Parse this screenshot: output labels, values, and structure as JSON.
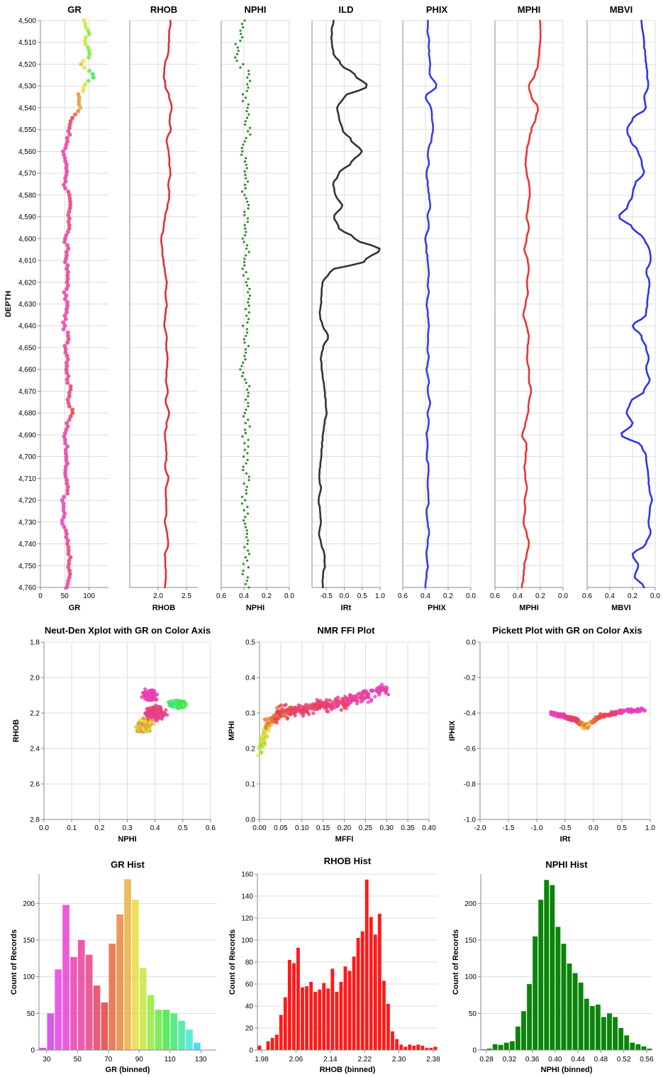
{
  "chart_data": [
    {
      "type": "line",
      "title": "GR",
      "xlabel": "GR",
      "ylabel": "DEPTH",
      "xlim": [
        0,
        140
      ],
      "xticks": [
        "0",
        "50",
        "100"
      ],
      "ylim": [
        4500,
        4760
      ],
      "yticks": [
        "4,500",
        "4,510",
        "4,520",
        "4,530",
        "4,540",
        "4,550",
        "4,560",
        "4,570",
        "4,580",
        "4,590",
        "4,600",
        "4,610",
        "4,620",
        "4,630",
        "4,640",
        "4,650",
        "4,660",
        "4,670",
        "4,680",
        "4,690",
        "4,700",
        "4,710",
        "4,720",
        "4,730",
        "4,740",
        "4,750",
        "4,760"
      ],
      "color": "GR color scale (purple-pink-orange-yellow-green-cyan-blue)",
      "depth": [
        4500,
        4505,
        4510,
        4515,
        4520,
        4525,
        4530,
        4535,
        4540,
        4545,
        4550,
        4555,
        4560,
        4565,
        4570,
        4575,
        4580,
        4585,
        4590,
        4595,
        4600,
        4605,
        4610,
        4615,
        4620,
        4625,
        4630,
        4635,
        4640,
        4645,
        4650,
        4655,
        4660,
        4665,
        4670,
        4675,
        4680,
        4685,
        4690,
        4695,
        4700,
        4705,
        4710,
        4715,
        4720,
        4725,
        4730,
        4735,
        4740,
        4745,
        4750,
        4755,
        4760
      ],
      "values": [
        88,
        99,
        92,
        103,
        85,
        110,
        92,
        78,
        82,
        65,
        60,
        55,
        48,
        52,
        55,
        50,
        58,
        60,
        57,
        61,
        50,
        55,
        53,
        55,
        57,
        50,
        55,
        52,
        48,
        57,
        52,
        57,
        55,
        57,
        62,
        58,
        65,
        55,
        50,
        54,
        55,
        52,
        52,
        58,
        45,
        48,
        45,
        52,
        55,
        60,
        58,
        60,
        53
      ]
    },
    {
      "type": "line",
      "title": "RHOB",
      "xlabel": "RHOB",
      "xlim": [
        1.5,
        2.7
      ],
      "xticks": [
        "2.0",
        "2.5"
      ],
      "color": "#e03030",
      "values": [
        2.22,
        2.2,
        2.19,
        2.18,
        2.12,
        2.1,
        2.13,
        2.2,
        2.24,
        2.2,
        2.22,
        2.15,
        2.18,
        2.2,
        2.22,
        2.18,
        2.2,
        2.17,
        2.12,
        2.1,
        2.05,
        2.07,
        2.09,
        2.12,
        2.15,
        2.13,
        2.15,
        2.13,
        2.11,
        2.15,
        2.14,
        2.17,
        2.15,
        2.14,
        2.17,
        2.13,
        2.2,
        2.15,
        2.12,
        2.14,
        2.15,
        2.12,
        2.18,
        2.13,
        2.14,
        2.15,
        2.12,
        2.16,
        2.18,
        2.12,
        2.13,
        2.14,
        2.12
      ]
    },
    {
      "type": "scatter",
      "title": "NPHI",
      "xlabel": "NPHI",
      "xlim": [
        0.6,
        0.0
      ],
      "xticks": [
        "0.6",
        "0.4",
        "0.2",
        "0.0"
      ],
      "color": "#2e8b2e",
      "values": [
        0.4,
        0.42,
        0.45,
        0.47,
        0.43,
        0.35,
        0.38,
        0.4,
        0.37,
        0.38,
        0.36,
        0.38,
        0.41,
        0.39,
        0.37,
        0.38,
        0.4,
        0.37,
        0.38,
        0.4,
        0.39,
        0.37,
        0.38,
        0.4,
        0.38,
        0.37,
        0.38,
        0.36,
        0.39,
        0.38,
        0.37,
        0.4,
        0.42,
        0.38,
        0.37,
        0.38,
        0.39,
        0.37,
        0.39,
        0.38,
        0.38,
        0.39,
        0.37,
        0.38,
        0.4,
        0.38,
        0.39,
        0.38,
        0.39,
        0.37,
        0.38,
        0.39,
        0.38
      ]
    },
    {
      "type": "line",
      "title": "ILD",
      "xlabel": "IRt",
      "xlim": [
        -0.9,
        1.0
      ],
      "xticks": [
        "-0.5",
        "0.0",
        "0.5",
        "1.0"
      ],
      "color": "#333333",
      "values": [
        -0.3,
        -0.35,
        -0.35,
        -0.3,
        -0.1,
        0.3,
        0.65,
        0.0,
        -0.2,
        -0.15,
        -0.05,
        0.2,
        0.5,
        0.2,
        -0.15,
        -0.3,
        -0.25,
        -0.05,
        -0.3,
        -0.15,
        0.3,
        1.0,
        0.6,
        -0.4,
        -0.6,
        -0.63,
        -0.65,
        -0.68,
        -0.6,
        -0.45,
        -0.6,
        -0.65,
        -0.62,
        -0.58,
        -0.55,
        -0.52,
        -0.5,
        -0.55,
        -0.6,
        -0.62,
        -0.65,
        -0.68,
        -0.7,
        -0.65,
        -0.72,
        -0.68,
        -0.65,
        -0.7,
        -0.65,
        -0.55,
        -0.55,
        -0.6,
        -0.6
      ]
    },
    {
      "type": "line",
      "title": "PHIX",
      "xlabel": "PHIX",
      "xlim": [
        0.6,
        0.0
      ],
      "xticks": [
        "0.6",
        "0.4",
        "0.2",
        "0.0"
      ],
      "color": "#3a3aee",
      "values": [
        0.38,
        0.38,
        0.37,
        0.37,
        0.36,
        0.36,
        0.3,
        0.4,
        0.35,
        0.34,
        0.33,
        0.35,
        0.38,
        0.37,
        0.39,
        0.38,
        0.37,
        0.36,
        0.38,
        0.37,
        0.4,
        0.39,
        0.38,
        0.37,
        0.38,
        0.37,
        0.39,
        0.38,
        0.37,
        0.38,
        0.38,
        0.37,
        0.39,
        0.37,
        0.38,
        0.36,
        0.38,
        0.37,
        0.39,
        0.38,
        0.39,
        0.37,
        0.38,
        0.38,
        0.37,
        0.39,
        0.38,
        0.37,
        0.38,
        0.39,
        0.38,
        0.39,
        0.4
      ]
    },
    {
      "type": "line",
      "title": "MPHI",
      "xlabel": "MPHI",
      "xlim": [
        0.6,
        0.0
      ],
      "xticks": [
        "0.6",
        "0.4",
        "0.2",
        "0.0"
      ],
      "color": "#ee3333",
      "values": [
        0.2,
        0.2,
        0.2,
        0.21,
        0.22,
        0.25,
        0.3,
        0.28,
        0.22,
        0.24,
        0.28,
        0.3,
        0.32,
        0.33,
        0.32,
        0.3,
        0.29,
        0.31,
        0.32,
        0.3,
        0.32,
        0.34,
        0.31,
        0.3,
        0.32,
        0.31,
        0.33,
        0.35,
        0.32,
        0.3,
        0.31,
        0.32,
        0.3,
        0.3,
        0.28,
        0.3,
        0.31,
        0.33,
        0.36,
        0.32,
        0.33,
        0.34,
        0.33,
        0.32,
        0.34,
        0.33,
        0.35,
        0.32,
        0.3,
        0.32,
        0.34,
        0.35,
        0.36
      ]
    },
    {
      "type": "line",
      "title": "MBVI",
      "xlabel": "MBVI",
      "xlim": [
        0.6,
        0.0
      ],
      "xticks": [
        "0.6",
        "0.4",
        "0.2",
        "0.0"
      ],
      "color": "#3333ee",
      "values": [
        0.12,
        0.11,
        0.1,
        0.09,
        0.08,
        0.07,
        0.06,
        0.1,
        0.08,
        0.2,
        0.25,
        0.22,
        0.15,
        0.12,
        0.1,
        0.18,
        0.2,
        0.24,
        0.32,
        0.2,
        0.1,
        0.05,
        0.04,
        0.08,
        0.05,
        0.06,
        0.07,
        0.08,
        0.2,
        0.12,
        0.08,
        0.06,
        0.08,
        0.05,
        0.1,
        0.22,
        0.25,
        0.2,
        0.3,
        0.12,
        0.08,
        0.07,
        0.06,
        0.05,
        0.03,
        0.05,
        0.06,
        0.04,
        0.08,
        0.2,
        0.15,
        0.18,
        0.1
      ]
    },
    {
      "type": "scatter",
      "title": "Neut-Den Xplot with GR on Color Axis",
      "xlabel": "NPHI",
      "ylabel": "RHOB",
      "xlim": [
        0,
        0.6
      ],
      "ylim": [
        2.8,
        1.8
      ],
      "xticks": [
        "0.0",
        "0.1",
        "0.2",
        "0.3",
        "0.4",
        "0.5",
        "0.6"
      ],
      "yticks": [
        "1.8",
        "2.0",
        "2.2",
        "2.4",
        "2.6",
        "2.8"
      ],
      "clusters": [
        {
          "nphi": 0.38,
          "rhob": 2.1,
          "spread": [
            0.03,
            0.04
          ],
          "gr": 50
        },
        {
          "nphi": 0.4,
          "rhob": 2.2,
          "spread": [
            0.05,
            0.05
          ],
          "gr": 60
        },
        {
          "nphi": 0.48,
          "rhob": 2.15,
          "spread": [
            0.04,
            0.03
          ],
          "gr": 110
        },
        {
          "nphi": 0.36,
          "rhob": 2.27,
          "spread": [
            0.04,
            0.05
          ],
          "gr": 85
        }
      ]
    },
    {
      "type": "scatter",
      "title": "NMR FFI Plot",
      "xlabel": "MFFI",
      "ylabel": "MPHI",
      "xlim": [
        0,
        0.4
      ],
      "ylim": [
        0,
        0.5
      ],
      "xticks": [
        "0.00",
        "0.05",
        "0.10",
        "0.15",
        "0.20",
        "0.25",
        "0.30",
        "0.35",
        "0.40"
      ],
      "yticks": [
        "0.0",
        "0.1",
        "0.2",
        "0.3",
        "0.4",
        "0.5"
      ],
      "trend": [
        [
          0.0,
          0.19,
          95
        ],
        [
          0.02,
          0.27,
          80
        ],
        [
          0.05,
          0.3,
          65
        ],
        [
          0.1,
          0.31,
          62
        ],
        [
          0.15,
          0.32,
          60
        ],
        [
          0.2,
          0.33,
          55
        ],
        [
          0.25,
          0.35,
          50
        ],
        [
          0.3,
          0.37,
          45
        ]
      ]
    },
    {
      "type": "scatter",
      "title": "Pickett Plot with GR on Color Axis",
      "xlabel": "IRt",
      "ylabel": "IPHIX",
      "xlim": [
        -2,
        1
      ],
      "ylim": [
        -1,
        0
      ],
      "xticks": [
        "-2.0",
        "-1.5",
        "-1.0",
        "-0.5",
        "0.0",
        "0.5",
        "1.0"
      ],
      "yticks": [
        "0.0",
        "-0.2",
        "-0.4",
        "-0.6",
        "-0.8",
        "-1.0"
      ],
      "trend": [
        [
          -0.75,
          -0.4,
          45
        ],
        [
          -0.5,
          -0.42,
          55
        ],
        [
          -0.3,
          -0.44,
          65
        ],
        [
          -0.15,
          -0.48,
          85
        ],
        [
          0.1,
          -0.42,
          70
        ],
        [
          0.5,
          -0.39,
          50
        ],
        [
          0.9,
          -0.38,
          45
        ]
      ]
    },
    {
      "type": "bar",
      "title": "GR Hist",
      "xlabel": "GR (binned)",
      "ylabel": "Count of Records",
      "xlim": [
        25,
        140
      ],
      "ylim": [
        0,
        240
      ],
      "xticks": [
        "30",
        "50",
        "70",
        "90",
        "110",
        "130"
      ],
      "yticks": [
        "0",
        "50",
        "100",
        "150",
        "200"
      ],
      "bin_start": 25,
      "bin_width": 5,
      "values": [
        3,
        50,
        110,
        198,
        127,
        150,
        130,
        88,
        65,
        145,
        185,
        233,
        205,
        112,
        75,
        55,
        55,
        50,
        40,
        28,
        10
      ]
    },
    {
      "type": "bar",
      "title": "RHOB Hist",
      "xlabel": "RHOB (binned)",
      "ylabel": "Count of Records",
      "xlim": [
        1.97,
        2.39
      ],
      "ylim": [
        0,
        160
      ],
      "xticks": [
        "1.98",
        "2.06",
        "2.14",
        "2.22",
        "2.30",
        "2.38"
      ],
      "yticks": [
        "0",
        "20",
        "40",
        "60",
        "80",
        "100",
        "120",
        "140",
        "160"
      ],
      "bin_start": 1.97,
      "bin_width": 0.01,
      "values": [
        4,
        0,
        8,
        11,
        14,
        32,
        48,
        82,
        79,
        93,
        57,
        58,
        62,
        53,
        55,
        61,
        56,
        74,
        53,
        62,
        76,
        72,
        85,
        102,
        108,
        155,
        121,
        105,
        124,
        63,
        42,
        17,
        10,
        5,
        3,
        5,
        4,
        5,
        4,
        2,
        2,
        3
      ]
    },
    {
      "type": "bar",
      "title": "NPHI Hist",
      "xlabel": "NPHI (binned)",
      "ylabel": "Count of Records",
      "xlim": [
        0.27,
        0.57
      ],
      "ylim": [
        0,
        240
      ],
      "xticks": [
        "0.28",
        "0.32",
        "0.36",
        "0.40",
        "0.44",
        "0.48",
        "0.52",
        "0.56"
      ],
      "yticks": [
        "0",
        "50",
        "100",
        "150",
        "200"
      ],
      "bin_start": 0.27,
      "bin_width": 0.01,
      "values": [
        1,
        2,
        8,
        7,
        10,
        12,
        32,
        53,
        90,
        155,
        205,
        232,
        225,
        168,
        145,
        118,
        105,
        92,
        70,
        60,
        62,
        45,
        50,
        45,
        30,
        20,
        10,
        8,
        5,
        2
      ]
    }
  ]
}
